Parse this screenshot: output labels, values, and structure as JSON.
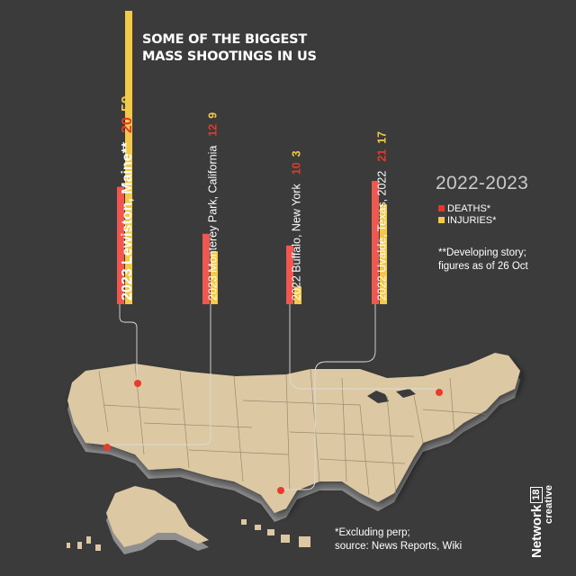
{
  "title_lines": [
    "SOME OF THE BIGGEST",
    "MASS SHOOTINGS IN US"
  ],
  "year_range": "2022-2023",
  "legend": {
    "deaths": "DEATHS*",
    "injuries": "INJURIES*"
  },
  "developing_note": [
    "**Developing story;",
    "figures as of 26 Oct"
  ],
  "source_note": [
    "*Excluding perp;",
    "source: News Reports, Wiki"
  ],
  "brand": {
    "name": "Network",
    "number": "18",
    "sub": "creative"
  },
  "colors": {
    "deaths": "#f0584f",
    "injuries": "#f3c948",
    "death_value": "#e23a2a",
    "injury_value": "#f3c948",
    "background": "#3b3b3b",
    "map": "#ddc8a4"
  },
  "chart_data": {
    "type": "bar",
    "categories": [
      "2023 Lewiston, Maine**",
      "2023 Monterey Park, California",
      "2022 Buffalo, New York",
      "2022 Uvalde, Texas, 2022"
    ],
    "series": [
      {
        "name": "DEATHS*",
        "values": [
          20,
          12,
          10,
          21
        ]
      },
      {
        "name": "INJURIES*",
        "values": [
          50,
          9,
          3,
          17
        ]
      }
    ],
    "ylim": [
      0,
      50
    ]
  }
}
